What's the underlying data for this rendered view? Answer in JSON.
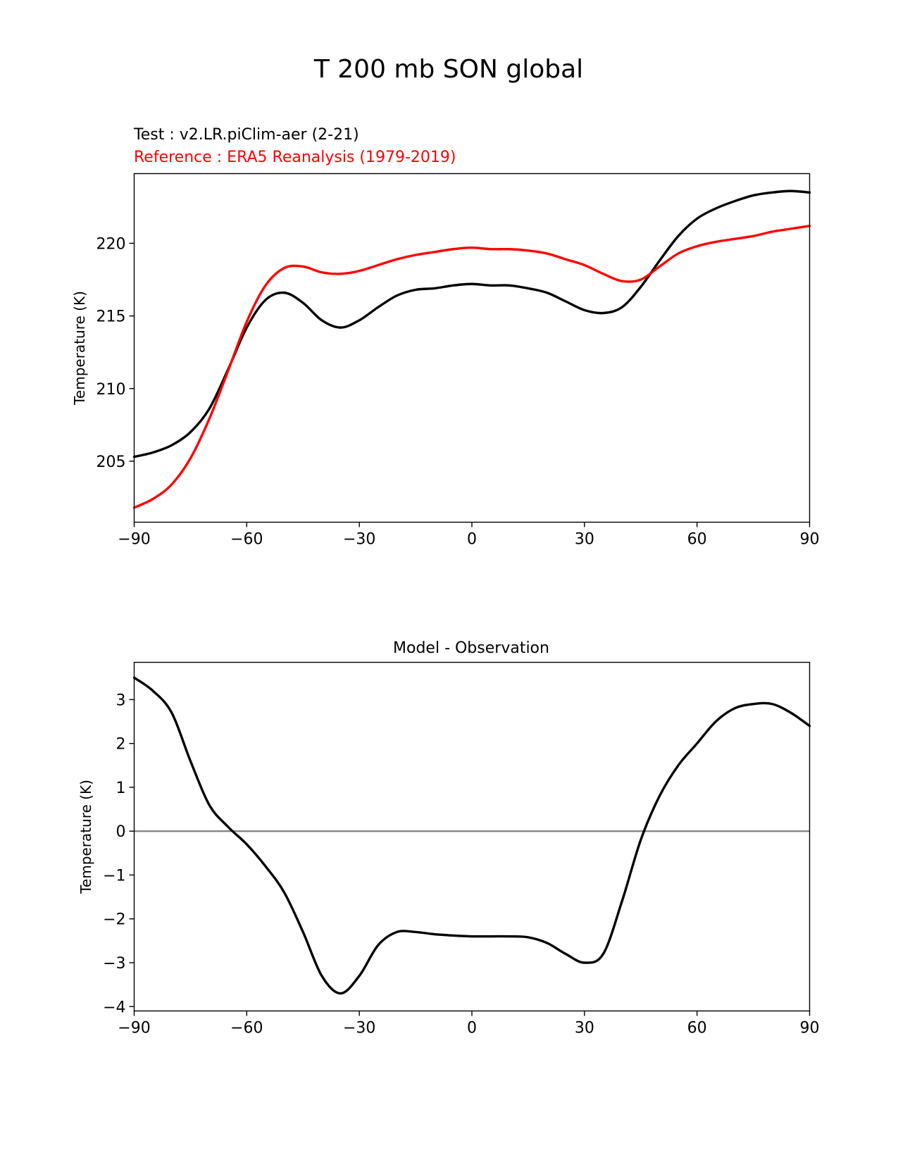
{
  "figure": {
    "title": "T 200 mb SON global"
  },
  "chart_data": [
    {
      "type": "line",
      "test_label": "Test : v2.LR.piClim-aer (2-21)",
      "reference_label": "Reference : ERA5 Reanalysis (1979-2019)",
      "title": "",
      "xlabel": "",
      "ylabel": "Temperature (K)",
      "xlim": [
        -90,
        90
      ],
      "ylim": [
        200.8,
        224.8
      ],
      "xticks": [
        -90,
        -60,
        -30,
        0,
        30,
        60,
        90
      ],
      "xtick_labels": [
        "−90",
        "−60",
        "−30",
        "0",
        "30",
        "60",
        "90"
      ],
      "yticks": [
        205,
        210,
        215,
        220
      ],
      "ytick_labels": [
        "205",
        "210",
        "215",
        "220"
      ],
      "grid": false,
      "series": [
        {
          "color": "#000000",
          "x": [
            -90,
            -85,
            -80,
            -75,
            -70,
            -65,
            -60,
            -55,
            -50,
            -45,
            -40,
            -35,
            -30,
            -25,
            -20,
            -15,
            -10,
            -5,
            0,
            5,
            10,
            15,
            20,
            25,
            30,
            35,
            40,
            45,
            50,
            55,
            60,
            65,
            70,
            75,
            80,
            85,
            90
          ],
          "y": [
            205.3,
            205.6,
            206.1,
            207.0,
            208.6,
            211.3,
            214.2,
            216.1,
            216.6,
            215.9,
            214.7,
            214.2,
            214.7,
            215.6,
            216.4,
            216.8,
            216.9,
            217.1,
            217.2,
            217.1,
            217.1,
            216.9,
            216.6,
            216.0,
            215.4,
            215.2,
            215.6,
            217.0,
            218.8,
            220.5,
            221.7,
            222.4,
            222.9,
            223.3,
            223.5,
            223.6,
            223.5
          ]
        },
        {
          "color": "#ff0000",
          "x": [
            -90,
            -85,
            -80,
            -75,
            -70,
            -65,
            -60,
            -55,
            -50,
            -45,
            -40,
            -35,
            -30,
            -25,
            -20,
            -15,
            -10,
            -5,
            0,
            5,
            10,
            15,
            20,
            25,
            30,
            35,
            40,
            45,
            50,
            55,
            60,
            65,
            70,
            75,
            80,
            85,
            90
          ],
          "y": [
            201.8,
            202.4,
            203.4,
            205.2,
            207.9,
            211.2,
            214.6,
            217.1,
            218.3,
            218.4,
            218.0,
            217.9,
            218.1,
            218.5,
            218.9,
            219.2,
            219.4,
            219.6,
            219.7,
            219.6,
            219.6,
            219.5,
            219.3,
            218.9,
            218.5,
            217.9,
            217.4,
            217.5,
            218.4,
            219.3,
            219.8,
            220.1,
            220.3,
            220.5,
            220.8,
            221.0,
            221.2
          ]
        }
      ]
    },
    {
      "type": "line",
      "title": "Model - Observation",
      "xlabel": "",
      "ylabel": "Temperature (K)",
      "xlim": [
        -90,
        90
      ],
      "ylim": [
        -4.1,
        3.85
      ],
      "xticks": [
        -90,
        -60,
        -30,
        0,
        30,
        60,
        90
      ],
      "xtick_labels": [
        "−90",
        "−60",
        "−30",
        "0",
        "30",
        "60",
        "90"
      ],
      "yticks": [
        -4,
        -3,
        -2,
        -1,
        0,
        1,
        2,
        3
      ],
      "ytick_labels": [
        "−4",
        "−3",
        "−2",
        "−1",
        "0",
        "1",
        "2",
        "3"
      ],
      "grid": false,
      "zero_line_color": "#808080",
      "series": [
        {
          "color": "#000000",
          "x": [
            -90,
            -85,
            -80,
            -75,
            -70,
            -65,
            -60,
            -55,
            -50,
            -45,
            -40,
            -35,
            -30,
            -25,
            -20,
            -15,
            -10,
            -5,
            0,
            5,
            10,
            15,
            20,
            25,
            30,
            35,
            40,
            45,
            50,
            55,
            60,
            65,
            70,
            75,
            80,
            85,
            90
          ],
          "y": [
            3.5,
            3.2,
            2.7,
            1.6,
            0.6,
            0.1,
            -0.3,
            -0.8,
            -1.4,
            -2.3,
            -3.3,
            -3.7,
            -3.3,
            -2.6,
            -2.3,
            -2.3,
            -2.35,
            -2.38,
            -2.4,
            -2.4,
            -2.4,
            -2.42,
            -2.55,
            -2.8,
            -3.0,
            -2.8,
            -1.6,
            -0.2,
            0.8,
            1.5,
            2.0,
            2.5,
            2.8,
            2.9,
            2.9,
            2.7,
            2.4
          ]
        }
      ]
    }
  ]
}
